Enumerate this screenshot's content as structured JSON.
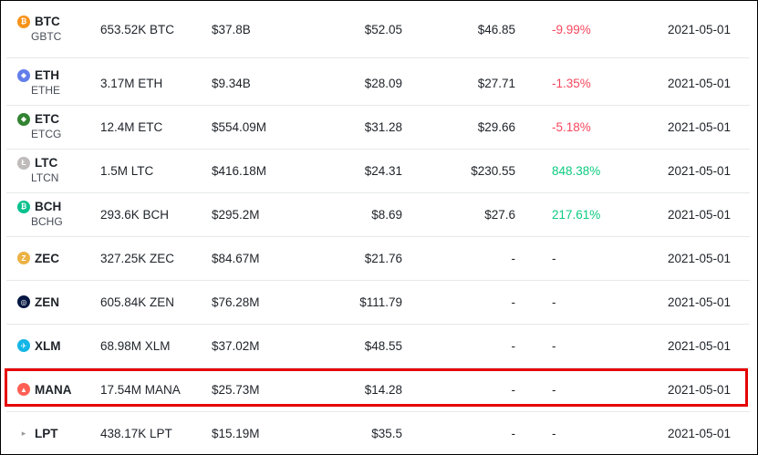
{
  "rows": [
    {
      "sym": "BTC",
      "trust": "GBTC",
      "holdings": "653.52K BTC",
      "value": "$37.8B",
      "nav": "$52.05",
      "market": "$46.85",
      "premium": "-9.99%",
      "premium_sign": "neg",
      "date": "2021-05-01",
      "icon": "bitcoin-icon",
      "icon_color": "#f7931a",
      "glyph": "₿"
    },
    {
      "sym": "ETH",
      "trust": "ETHE",
      "holdings": "3.17M ETH",
      "value": "$9.34B",
      "nav": "$28.09",
      "market": "$27.71",
      "premium": "-1.35%",
      "premium_sign": "neg",
      "date": "2021-05-01",
      "icon": "ethereum-icon",
      "icon_color": "#627eea",
      "glyph": "◆"
    },
    {
      "sym": "ETC",
      "trust": "ETCG",
      "holdings": "12.4M ETC",
      "value": "$554.09M",
      "nav": "$31.28",
      "market": "$29.66",
      "premium": "-5.18%",
      "premium_sign": "neg",
      "date": "2021-05-01",
      "icon": "ethereum-classic-icon",
      "icon_color": "#328332",
      "glyph": "◆"
    },
    {
      "sym": "LTC",
      "trust": "LTCN",
      "holdings": "1.5M LTC",
      "value": "$416.18M",
      "nav": "$24.31",
      "market": "$230.55",
      "premium": "848.38%",
      "premium_sign": "pos",
      "date": "2021-05-01",
      "icon": "litecoin-icon",
      "icon_color": "#bfbbbb",
      "glyph": "Ł"
    },
    {
      "sym": "BCH",
      "trust": "BCHG",
      "holdings": "293.6K BCH",
      "value": "$295.2M",
      "nav": "$8.69",
      "market": "$27.6",
      "premium": "217.61%",
      "premium_sign": "pos",
      "date": "2021-05-01",
      "icon": "bitcoin-cash-icon",
      "icon_color": "#0ac18e",
      "glyph": "₿"
    },
    {
      "sym": "ZEC",
      "trust": "",
      "holdings": "327.25K ZEC",
      "value": "$84.67M",
      "nav": "$21.76",
      "market": "-",
      "premium": "-",
      "premium_sign": "none",
      "date": "2021-05-01",
      "icon": "zcash-icon",
      "icon_color": "#ecb244",
      "glyph": "Z"
    },
    {
      "sym": "ZEN",
      "trust": "",
      "holdings": "605.84K ZEN",
      "value": "$76.28M",
      "nav": "$111.79",
      "market": "-",
      "premium": "-",
      "premium_sign": "none",
      "date": "2021-05-01",
      "icon": "horizen-icon",
      "icon_color": "#041742",
      "glyph": "◎"
    },
    {
      "sym": "XLM",
      "trust": "",
      "holdings": "68.98M XLM",
      "value": "$37.02M",
      "nav": "$48.55",
      "market": "-",
      "premium": "-",
      "premium_sign": "none",
      "date": "2021-05-01",
      "icon": "stellar-icon",
      "icon_color": "#14b6e7",
      "glyph": "✈"
    },
    {
      "sym": "MANA",
      "trust": "",
      "holdings": "17.54M MANA",
      "value": "$25.73M",
      "nav": "$14.28",
      "market": "-",
      "premium": "-",
      "premium_sign": "none",
      "date": "2021-05-01",
      "icon": "decentraland-icon",
      "icon_color": "#ff5f55",
      "glyph": "▲"
    },
    {
      "sym": "LPT",
      "trust": "",
      "holdings": "438.17K LPT",
      "value": "$15.19M",
      "nav": "$35.5",
      "market": "-",
      "premium": "-",
      "premium_sign": "none",
      "date": "2021-05-01",
      "icon": "livepeer-icon",
      "icon_color": "#000000",
      "glyph": "▸"
    }
  ]
}
